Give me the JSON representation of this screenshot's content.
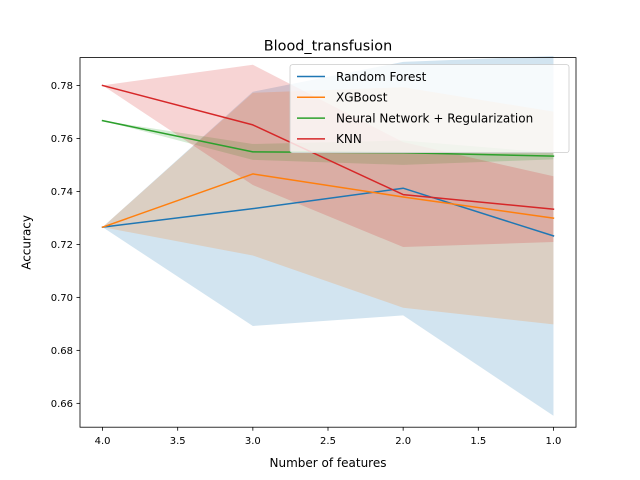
{
  "chart_data": {
    "type": "line",
    "title": "Blood_transfusion",
    "xlabel": "Number of features",
    "ylabel": "Accuracy",
    "xlim": [
      4.15,
      0.85
    ],
    "ylim": [
      0.651,
      0.7905
    ],
    "xticks": [
      4.0,
      3.5,
      3.0,
      2.5,
      2.0,
      1.5,
      1.0
    ],
    "xtick_labels": [
      "4.0",
      "3.5",
      "3.0",
      "2.5",
      "2.0",
      "1.5",
      "1.0"
    ],
    "yticks": [
      0.66,
      0.68,
      0.7,
      0.72,
      0.74,
      0.76,
      0.78
    ],
    "ytick_labels": [
      "0.66",
      "0.68",
      "0.70",
      "0.72",
      "0.74",
      "0.76",
      "0.78"
    ],
    "legend_position": "top-right",
    "x": [
      4,
      3,
      2,
      1
    ],
    "series": [
      {
        "name": "Random Forest",
        "color": "#1f77b4",
        "values": [
          0.7265,
          0.7335,
          0.7412,
          0.7232
        ],
        "lower": [
          0.7265,
          0.6892,
          0.6932,
          0.6553
        ],
        "upper": [
          0.7265,
          0.7776,
          0.7889,
          0.7911
        ]
      },
      {
        "name": "XGBoost",
        "color": "#ff7f0e",
        "values": [
          0.7265,
          0.7466,
          0.7379,
          0.7299
        ],
        "lower": [
          0.7265,
          0.7158,
          0.6961,
          0.6898
        ],
        "upper": [
          0.7265,
          0.7772,
          0.7793,
          0.7701
        ]
      },
      {
        "name": "Neural Network + Regularization",
        "color": "#2ca02c",
        "values": [
          0.7667,
          0.7549,
          0.7546,
          0.7533
        ],
        "lower": [
          0.7667,
          0.7519,
          0.75,
          0.7521
        ],
        "upper": [
          0.7667,
          0.7579,
          0.7592,
          0.7545
        ]
      },
      {
        "name": "KNN",
        "color": "#d62728",
        "values": [
          0.78,
          0.7651,
          0.7388,
          0.7333
        ],
        "lower": [
          0.78,
          0.7424,
          0.719,
          0.7209
        ],
        "upper": [
          0.78,
          0.7878,
          0.7586,
          0.7457
        ]
      }
    ]
  }
}
